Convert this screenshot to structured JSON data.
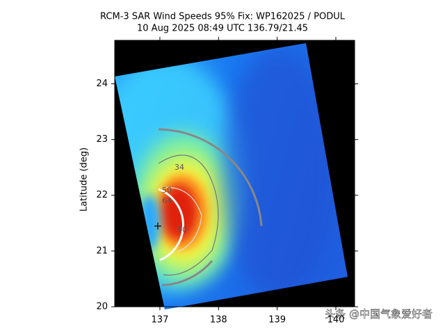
{
  "chart_data": {
    "type": "image",
    "title": "RCM-3 SAR Wind Speeds 95% Fix: WP162025 / PODUL",
    "subtitle": "10 Aug 2025 08:49 UTC  136.79/21.45",
    "y_label": "Latitude (deg)",
    "xlim": [
      136.23,
      140.32
    ],
    "xticks": [
      137,
      138,
      139,
      140
    ],
    "ylim": [
      20,
      24.78
    ],
    "yticks": [
      20,
      21,
      22,
      23,
      24
    ],
    "annotations": [
      "34",
      "50",
      "64",
      "50"
    ],
    "watermark": "头条 @中国气象爱好者"
  }
}
